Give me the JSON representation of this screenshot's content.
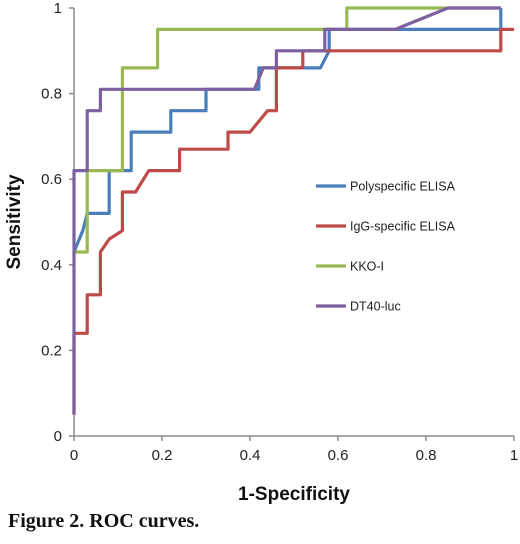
{
  "caption": "Figure 2. ROC curves.",
  "chart_data": {
    "type": "line",
    "title": "",
    "xlabel": "1-Specificity",
    "ylabel": "Sensitivity",
    "xlim": [
      0,
      1
    ],
    "ylim": [
      0,
      1
    ],
    "x_ticks": [
      "0",
      "0.2",
      "0.4",
      "0.6",
      "0.8",
      "1"
    ],
    "y_ticks": [
      "0",
      "0.2",
      "0.4",
      "0.6",
      "0.8",
      "1"
    ],
    "grid": false,
    "legend_position": "right",
    "series": [
      {
        "name": "Polyspecific ELISA",
        "color": "#4a7ebb",
        "points": [
          [
            0,
            0.43
          ],
          [
            0,
            0.43
          ],
          [
            0.02,
            0.48
          ],
          [
            0.03,
            0.52
          ],
          [
            0.08,
            0.52
          ],
          [
            0.08,
            0.62
          ],
          [
            0.13,
            0.62
          ],
          [
            0.13,
            0.71
          ],
          [
            0.22,
            0.71
          ],
          [
            0.22,
            0.76
          ],
          [
            0.3,
            0.76
          ],
          [
            0.3,
            0.81
          ],
          [
            0.42,
            0.81
          ],
          [
            0.42,
            0.86
          ],
          [
            0.56,
            0.86
          ],
          [
            0.58,
            0.9
          ],
          [
            0.58,
            0.95
          ],
          [
            0.73,
            0.95
          ],
          [
            0.73,
            0.95
          ],
          [
            0.97,
            0.95
          ],
          [
            0.97,
            1
          ]
        ]
      },
      {
        "name": "IgG-specific ELISA",
        "color": "#be4b48",
        "points": [
          [
            0,
            0.05
          ],
          [
            0,
            0.24
          ],
          [
            0.03,
            0.24
          ],
          [
            0.03,
            0.33
          ],
          [
            0.06,
            0.33
          ],
          [
            0.06,
            0.43
          ],
          [
            0.08,
            0.46
          ],
          [
            0.11,
            0.48
          ],
          [
            0.11,
            0.57
          ],
          [
            0.14,
            0.57
          ],
          [
            0.17,
            0.62
          ],
          [
            0.24,
            0.62
          ],
          [
            0.24,
            0.67
          ],
          [
            0.35,
            0.67
          ],
          [
            0.35,
            0.71
          ],
          [
            0.4,
            0.71
          ],
          [
            0.44,
            0.76
          ],
          [
            0.46,
            0.76
          ],
          [
            0.46,
            0.86
          ],
          [
            0.52,
            0.86
          ],
          [
            0.52,
            0.9
          ],
          [
            0.97,
            0.9
          ],
          [
            0.97,
            0.95
          ],
          [
            1,
            0.95
          ]
        ]
      },
      {
        "name": "KKO-I",
        "color": "#98b954",
        "points": [
          [
            0,
            0.43
          ],
          [
            0.03,
            0.43
          ],
          [
            0.03,
            0.62
          ],
          [
            0.11,
            0.62
          ],
          [
            0.11,
            0.86
          ],
          [
            0.19,
            0.86
          ],
          [
            0.19,
            0.95
          ],
          [
            0.62,
            0.95
          ],
          [
            0.62,
            1
          ],
          [
            0.97,
            1
          ]
        ]
      },
      {
        "name": "DT40-luc",
        "color": "#7d60a0",
        "points": [
          [
            0,
            0.05
          ],
          [
            0,
            0.62
          ],
          [
            0.03,
            0.62
          ],
          [
            0.03,
            0.76
          ],
          [
            0.06,
            0.76
          ],
          [
            0.06,
            0.81
          ],
          [
            0.41,
            0.81
          ],
          [
            0.43,
            0.86
          ],
          [
            0.46,
            0.86
          ],
          [
            0.46,
            0.9
          ],
          [
            0.57,
            0.9
          ],
          [
            0.57,
            0.95
          ],
          [
            0.73,
            0.95
          ],
          [
            0.85,
            1
          ],
          [
            0.97,
            1
          ]
        ]
      }
    ]
  }
}
